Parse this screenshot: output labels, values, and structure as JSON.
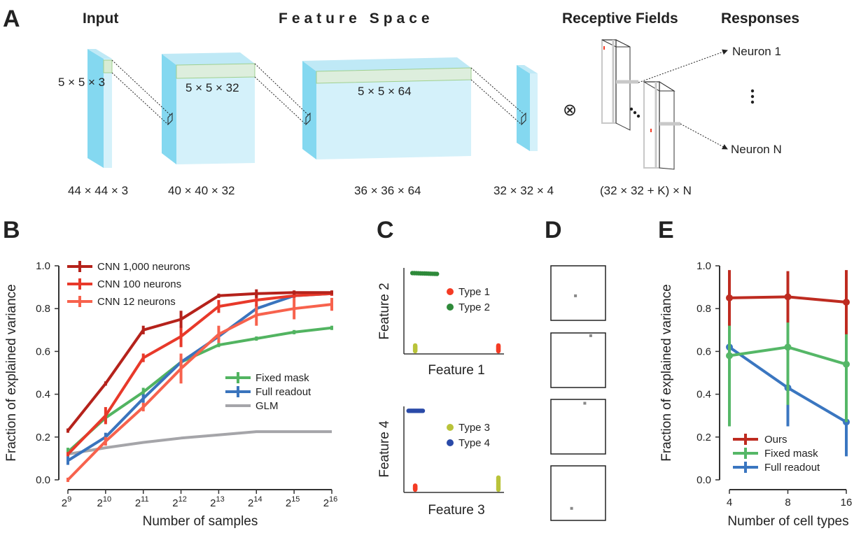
{
  "panel_a": {
    "label": "A",
    "headers": {
      "input": "Input",
      "feature_space": "Feature Space",
      "receptive_fields": "Receptive Fields",
      "responses": "Responses"
    },
    "kernels": [
      "5 × 5 × 3",
      "5 × 5 × 32",
      "5 × 5 × 64"
    ],
    "dims": [
      "44 × 44 × 3",
      "40 × 40 × 32",
      "36 × 36 × 64",
      "32 × 32 ×  4",
      "(32 × 32 + K) ×  N"
    ],
    "operator": "⊗",
    "neuron_first": "Neuron 1",
    "neuron_last": "Neuron  N",
    "colors": {
      "layer_face": "#84d8f0",
      "layer_side": "#d4f1fa",
      "layer_top": "#ddeedd"
    }
  },
  "chart_data": [
    {
      "panel": "B",
      "type": "line",
      "xlabel": "Number of samples",
      "ylabel": "Fraction of explained variance",
      "x_exponents": [
        9,
        10,
        11,
        12,
        13,
        14,
        15,
        16
      ],
      "x_tick_base": "2",
      "ylim": [
        0,
        1
      ],
      "yticks": [
        "0.0",
        "0.2",
        "0.4",
        "0.6",
        "0.8",
        "1.0"
      ],
      "legend_top": [
        "CNN 1,000 neurons",
        "CNN 100 neurons",
        "CNN 12 neurons"
      ],
      "legend_bottom": [
        "Fixed mask",
        "Full readout",
        "GLM"
      ],
      "series": [
        {
          "name": "CNN 1,000 neurons",
          "color": "#b5221b",
          "values": [
            0.23,
            0.45,
            0.7,
            0.75,
            0.86,
            0.87,
            0.875,
            0.875
          ],
          "err": [
            0.01,
            0.01,
            0.02,
            0.04,
            0.01,
            0.02,
            0.01,
            0.01
          ]
        },
        {
          "name": "CNN 100 neurons",
          "color": "#e8392a",
          "values": [
            0.12,
            0.3,
            0.57,
            0.67,
            0.81,
            0.84,
            0.86,
            0.87
          ],
          "err": [
            0.01,
            0.04,
            0.02,
            0.05,
            0.03,
            0.03,
            0.01,
            0.01
          ]
        },
        {
          "name": "CNN 12 neurons",
          "color": "#f7624d",
          "values": [
            0.0,
            0.18,
            0.34,
            0.52,
            0.68,
            0.77,
            0.8,
            0.82
          ],
          "err": [
            0.01,
            0.02,
            0.02,
            0.07,
            0.04,
            0.05,
            0.05,
            0.03
          ]
        },
        {
          "name": "Fixed mask",
          "color": "#52b461",
          "values": [
            0.13,
            0.29,
            0.41,
            0.55,
            0.63,
            0.66,
            0.69,
            0.71
          ],
          "err": [
            0.02,
            0.02,
            0.02,
            0.02,
            0.01,
            0.01,
            0.01,
            0.01
          ]
        },
        {
          "name": "Full readout",
          "color": "#3a74bd",
          "values": [
            0.09,
            0.2,
            0.38,
            0.55,
            0.67,
            0.8,
            0.86,
            0.87
          ],
          "err": [
            0.02,
            0.02,
            0.02,
            0.02,
            0.01,
            0.01,
            0.01,
            0.01
          ]
        },
        {
          "name": "GLM",
          "color": "#a5a5a9",
          "values": [
            0.12,
            0.15,
            0.175,
            0.195,
            0.21,
            0.225,
            0.225,
            0.225
          ],
          "err": [
            0,
            0,
            0,
            0,
            0,
            0,
            0,
            0
          ]
        }
      ]
    },
    {
      "panel": "C",
      "type": "scatter",
      "plots": [
        {
          "xlabel": "Feature 1",
          "ylabel": "Feature 2",
          "legend": [
            {
              "name": "Type 1",
              "color": "#f43b24"
            },
            {
              "name": "Type 2",
              "color": "#2e8a3a"
            }
          ],
          "clusters": [
            {
              "name": "Type 1",
              "color": "#f43b24",
              "x": [
                0.97,
                0.97
              ],
              "y": [
                0.0,
                0.07
              ]
            },
            {
              "name": "Type 2",
              "color": "#2e8a3a",
              "x": [
                0.06,
                0.32
              ],
              "y": [
                0.97,
                0.96
              ]
            },
            {
              "name": "Type 3",
              "color": "#b9c33a",
              "x": [
                0.09,
                0.09
              ],
              "y": [
                0.0,
                0.07
              ]
            }
          ]
        },
        {
          "xlabel": "Feature 3",
          "ylabel": "Feature 4",
          "legend": [
            {
              "name": "Type 3",
              "color": "#b9c33a"
            },
            {
              "name": "Type 4",
              "color": "#2a4aa8"
            }
          ],
          "clusters": [
            {
              "name": "Type 4",
              "color": "#2a4aa8",
              "x": [
                0.02,
                0.17
              ],
              "y": [
                0.98,
                0.98
              ]
            },
            {
              "name": "Type 3",
              "color": "#b9c33a",
              "x": [
                0.97,
                0.97
              ],
              "y": [
                0.0,
                0.15
              ]
            },
            {
              "name": "Type 1",
              "color": "#f43b24",
              "x": [
                0.09,
                0.09
              ],
              "y": [
                0.0,
                0.05
              ]
            }
          ]
        }
      ]
    },
    {
      "panel": "E",
      "type": "line",
      "xlabel": "Number of cell types",
      "ylabel": "Fraction of explained variance",
      "categories": [
        "4",
        "8",
        "16"
      ],
      "ylim": [
        0,
        1
      ],
      "yticks": [
        "0.0",
        "0.2",
        "0.4",
        "0.6",
        "0.8",
        "1.0"
      ],
      "series": [
        {
          "name": "Ours",
          "color": "#be2b20",
          "values": [
            0.85,
            0.855,
            0.83
          ],
          "err": [
            0.13,
            0.12,
            0.15
          ]
        },
        {
          "name": "Fixed mask",
          "color": "#55b767",
          "values": [
            0.58,
            0.62,
            0.54
          ],
          "err": [
            0.33,
            0.27,
            0.27
          ]
        },
        {
          "name": "Full readout",
          "color": "#3a76c0",
          "values": [
            0.62,
            0.43,
            0.27
          ],
          "err": [
            0.12,
            0.18,
            0.16
          ]
        }
      ]
    }
  ],
  "panel_labels": {
    "b": "B",
    "c": "C",
    "d": "D",
    "e": "E"
  },
  "panel_d": {
    "dots": [
      [
        0.45,
        0.55
      ],
      [
        0.73,
        0.05
      ],
      [
        0.62,
        0.07
      ],
      [
        0.38,
        0.78
      ]
    ]
  }
}
